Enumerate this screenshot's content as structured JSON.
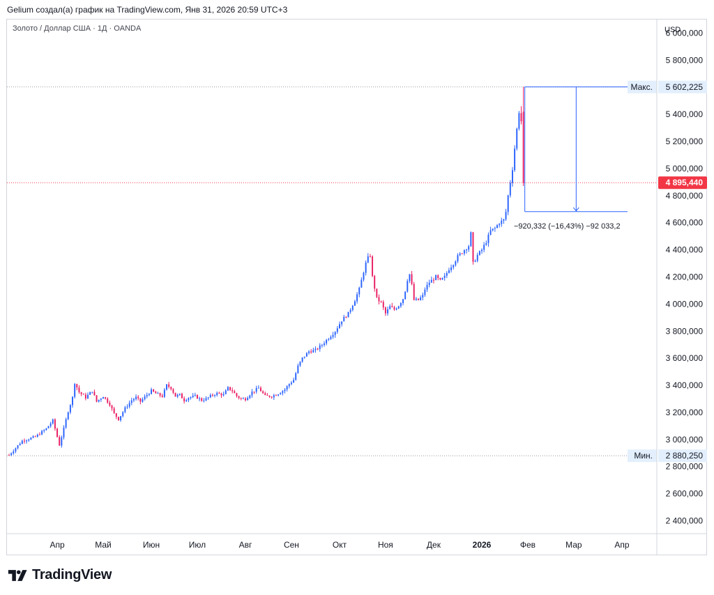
{
  "header": {
    "title": "Gelium создал(а) график на TradingView.com, Янв 31, 2026 20:59 UTC+3"
  },
  "symbol": {
    "label": "Золото / Доллар США · 1Д · OANDA"
  },
  "brand": {
    "name": "TradingView"
  },
  "chart_data": {
    "type": "candlestick",
    "currency_label": "USD",
    "y_ticks": [
      "6 000,000",
      "5 800,000",
      "5 400,000",
      "5 200,000",
      "5 000,000",
      "4 800,000",
      "4 600,000",
      "4 400,000",
      "4 200,000",
      "4 000,000",
      "3 800,000",
      "3 600,000",
      "3 400,000",
      "3 200,000",
      "3 000,000",
      "2 800,000",
      "2 600,000",
      "2 400,000"
    ],
    "y_tick_values": [
      6000,
      5800,
      5400,
      5200,
      5000,
      4800,
      4600,
      4400,
      4200,
      4000,
      3800,
      3600,
      3400,
      3200,
      3000,
      2800,
      2600,
      2400
    ],
    "ylim": [
      2305,
      6100
    ],
    "x_ticks": [
      "Апр",
      "Май",
      "Июн",
      "Июл",
      "Авг",
      "Сен",
      "Окт",
      "Ноя",
      "Дек",
      "2026",
      "Фев",
      "Мар",
      "Апр"
    ],
    "x_tick_index": [
      22,
      43,
      65,
      86,
      108,
      129,
      151,
      172,
      194,
      216,
      237,
      258,
      280
    ],
    "n_slots": 295,
    "max": {
      "label": "Макс.",
      "value": 5602.225,
      "text": "5 602,225"
    },
    "min": {
      "label": "Мин.",
      "value": 2880.25,
      "text": "2 880,250"
    },
    "last": {
      "value": 4895.44,
      "text": "4 895,440"
    },
    "measure": {
      "from": 5602.225,
      "to": 4681.893,
      "text": "−920,332 (−16,43%) −92 033,2"
    },
    "colors": {
      "up": "#2962ff",
      "down": "#e91e63",
      "last": "#f23645",
      "measure": "#2962ff",
      "grid": "#d1d4dc"
    },
    "close_path": [
      [
        0,
        2885
      ],
      [
        6,
        2990
      ],
      [
        12,
        3020
      ],
      [
        17,
        3080
      ],
      [
        20,
        3140
      ],
      [
        22,
        3020
      ],
      [
        23,
        2960
      ],
      [
        25,
        3080
      ],
      [
        27,
        3210
      ],
      [
        29,
        3310
      ],
      [
        30,
        3420
      ],
      [
        32,
        3350
      ],
      [
        35,
        3310
      ],
      [
        38,
        3360
      ],
      [
        40,
        3280
      ],
      [
        43,
        3320
      ],
      [
        46,
        3260
      ],
      [
        48,
        3190
      ],
      [
        50,
        3150
      ],
      [
        53,
        3230
      ],
      [
        56,
        3290
      ],
      [
        58,
        3310
      ],
      [
        60,
        3280
      ],
      [
        63,
        3330
      ],
      [
        65,
        3360
      ],
      [
        67,
        3340
      ],
      [
        70,
        3320
      ],
      [
        72,
        3400
      ],
      [
        74,
        3380
      ],
      [
        76,
        3320
      ],
      [
        78,
        3330
      ],
      [
        80,
        3290
      ],
      [
        82,
        3310
      ],
      [
        85,
        3320
      ],
      [
        88,
        3290
      ],
      [
        90,
        3300
      ],
      [
        93,
        3330
      ],
      [
        95,
        3340
      ],
      [
        98,
        3330
      ],
      [
        100,
        3380
      ],
      [
        102,
        3360
      ],
      [
        104,
        3320
      ],
      [
        106,
        3300
      ],
      [
        108,
        3300
      ],
      [
        111,
        3350
      ],
      [
        114,
        3380
      ],
      [
        117,
        3320
      ],
      [
        120,
        3320
      ],
      [
        123,
        3340
      ],
      [
        126,
        3370
      ],
      [
        128,
        3410
      ],
      [
        130,
        3440
      ],
      [
        132,
        3540
      ],
      [
        134,
        3600
      ],
      [
        137,
        3650
      ],
      [
        140,
        3660
      ],
      [
        143,
        3700
      ],
      [
        146,
        3750
      ],
      [
        149,
        3800
      ],
      [
        152,
        3880
      ],
      [
        155,
        3930
      ],
      [
        158,
        4030
      ],
      [
        160,
        4110
      ],
      [
        162,
        4240
      ],
      [
        163,
        4300
      ],
      [
        164,
        4340
      ],
      [
        165,
        4360
      ],
      [
        166,
        4200
      ],
      [
        167,
        4120
      ],
      [
        168,
        4040
      ],
      [
        170,
        4010
      ],
      [
        172,
        3930
      ],
      [
        174,
        3980
      ],
      [
        176,
        3960
      ],
      [
        178,
        3990
      ],
      [
        180,
        4040
      ],
      [
        181,
        4100
      ],
      [
        182,
        4180
      ],
      [
        183,
        4220
      ],
      [
        184,
        4140
      ],
      [
        185,
        4030
      ],
      [
        187,
        4030
      ],
      [
        189,
        4060
      ],
      [
        190,
        4110
      ],
      [
        192,
        4160
      ],
      [
        195,
        4200
      ],
      [
        197,
        4170
      ],
      [
        199,
        4200
      ],
      [
        201,
        4260
      ],
      [
        203,
        4300
      ],
      [
        205,
        4350
      ],
      [
        208,
        4400
      ],
      [
        210,
        4430
      ],
      [
        211,
        4520
      ],
      [
        212,
        4300
      ],
      [
        214,
        4360
      ],
      [
        216,
        4400
      ],
      [
        218,
        4460
      ],
      [
        220,
        4540
      ],
      [
        222,
        4560
      ],
      [
        224,
        4600
      ],
      [
        226,
        4620
      ],
      [
        227,
        4680
      ],
      [
        228,
        4800
      ],
      [
        229,
        4900
      ],
      [
        230,
        5000
      ],
      [
        231,
        5150
      ],
      [
        232,
        5290
      ],
      [
        233,
        5420
      ],
      [
        234,
        5350
      ],
      [
        235,
        4895
      ]
    ]
  }
}
